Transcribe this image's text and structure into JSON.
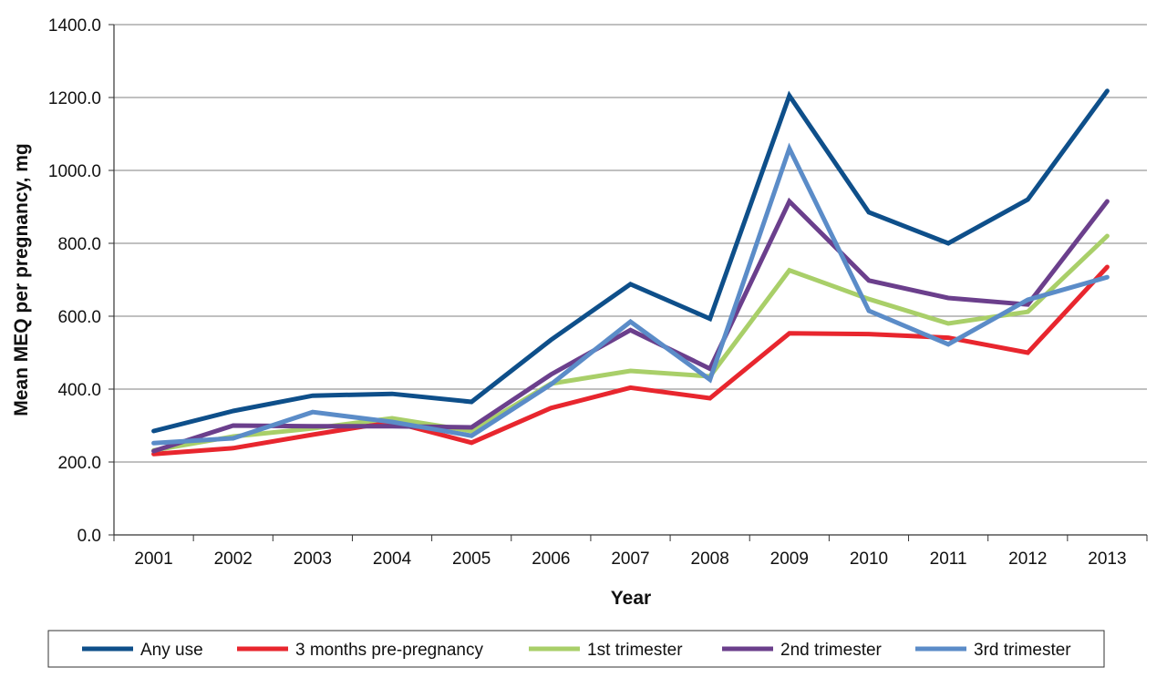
{
  "chart_data": {
    "type": "line",
    "title": "",
    "xlabel": "Year",
    "ylabel": "Mean MEQ per pregnancy, mg",
    "categories": [
      "2001",
      "2002",
      "2003",
      "2004",
      "2005",
      "2006",
      "2007",
      "2008",
      "2009",
      "2010",
      "2011",
      "2012",
      "2013"
    ],
    "ylim": [
      0,
      1400
    ],
    "yticks": [
      "0.0",
      "200.0",
      "400.0",
      "600.0",
      "800.0",
      "1000.0",
      "1200.0",
      "1400.0"
    ],
    "grid": true,
    "legend_position": "bottom",
    "series": [
      {
        "name": "Any use",
        "color": "#0e4f8a",
        "values": [
          285,
          340,
          382,
          387,
          365,
          535,
          688,
          593,
          1205,
          885,
          800,
          920,
          1218
        ]
      },
      {
        "name": "3 months pre-pregnancy",
        "color": "#e8262e",
        "values": [
          222,
          238,
          275,
          310,
          253,
          348,
          404,
          375,
          553,
          551,
          541,
          500,
          735
        ]
      },
      {
        "name": "1st trimester",
        "color": "#a9cf69",
        "values": [
          232,
          270,
          292,
          320,
          285,
          415,
          450,
          435,
          726,
          647,
          580,
          612,
          820
        ]
      },
      {
        "name": "2nd trimester",
        "color": "#6b3f8c",
        "values": [
          230,
          300,
          298,
          298,
          295,
          440,
          562,
          456,
          915,
          698,
          650,
          632,
          915
        ]
      },
      {
        "name": "3rd trimester",
        "color": "#5b8cc8",
        "values": [
          252,
          265,
          337,
          310,
          272,
          413,
          585,
          426,
          1060,
          615,
          523,
          645,
          707
        ]
      }
    ]
  }
}
